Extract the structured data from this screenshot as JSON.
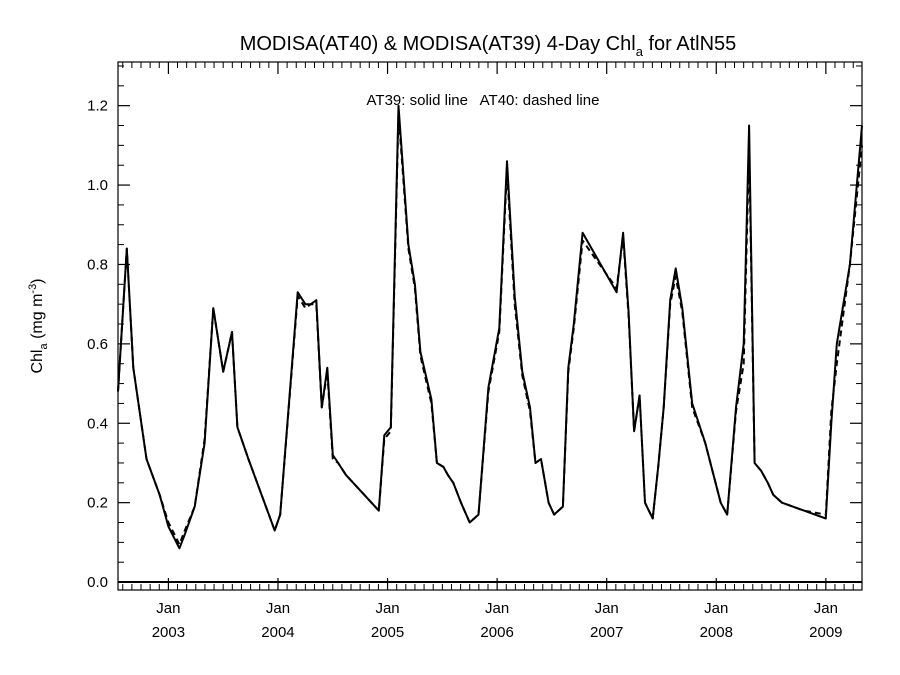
{
  "chart_data": {
    "type": "line",
    "title": {
      "main": "MODISA(AT40) & MODISA(AT39) 4-Day Chl",
      "sub": "a",
      "suffix": " for AtlN55"
    },
    "ylabel": {
      "main": "Chl",
      "sub": "a",
      "units": " (mg m",
      "sup": "-3",
      "close": ")"
    },
    "annotation": "AT39: solid line   AT40: dashed line",
    "ylim": [
      -0.02,
      1.31
    ],
    "yticks": [
      0.0,
      0.2,
      0.4,
      0.6,
      0.8,
      1.0,
      1.2
    ],
    "ytick_labels": [
      "0.0",
      "0.2",
      "0.4",
      "0.6",
      "0.8",
      "1.0",
      "1.2"
    ],
    "xlim": [
      2002.54,
      2009.33
    ],
    "xticks": [
      {
        "x": 2003.0,
        "month": "Jan",
        "year": "2003"
      },
      {
        "x": 2004.0,
        "month": "Jan",
        "year": "2004"
      },
      {
        "x": 2005.0,
        "month": "Jan",
        "year": "2005"
      },
      {
        "x": 2006.0,
        "month": "Jan",
        "year": "2006"
      },
      {
        "x": 2007.0,
        "month": "Jan",
        "year": "2007"
      },
      {
        "x": 2008.0,
        "month": "Jan",
        "year": "2008"
      },
      {
        "x": 2009.0,
        "month": "Jan",
        "year": "2009"
      }
    ],
    "series": [
      {
        "name": "AT39",
        "style": "solid",
        "x": [
          2002.54,
          2002.62,
          2002.68,
          2002.8,
          2002.92,
          2003.0,
          2003.1,
          2003.15,
          2003.24,
          2003.33,
          2003.41,
          2003.5,
          2003.58,
          2003.63,
          2003.73,
          2003.97,
          2004.02,
          2004.18,
          2004.25,
          2004.3,
          2004.35,
          2004.4,
          2004.45,
          2004.5,
          2004.55,
          2004.62,
          2004.92,
          2004.97,
          2005.03,
          2005.1,
          2005.19,
          2005.25,
          2005.3,
          2005.4,
          2005.45,
          2005.51,
          2005.55,
          2005.6,
          2005.67,
          2005.75,
          2005.83,
          2005.92,
          2006.02,
          2006.09,
          2006.16,
          2006.23,
          2006.3,
          2006.35,
          2006.4,
          2006.47,
          2006.52,
          2006.6,
          2006.65,
          2006.7,
          2006.78,
          2007.09,
          2007.15,
          2007.2,
          2007.25,
          2007.3,
          2007.35,
          2007.42,
          2007.47,
          2007.52,
          2007.58,
          2007.63,
          2007.69,
          2007.78,
          2007.9,
          2008.04,
          2008.1,
          2008.18,
          2008.25,
          2008.3,
          2008.35,
          2008.41,
          2008.47,
          2008.52,
          2008.6,
          2008.8,
          2009.0,
          2009.05,
          2009.1,
          2009.22,
          2009.33
        ],
        "y": [
          0.48,
          0.84,
          0.54,
          0.31,
          0.22,
          0.14,
          0.085,
          0.12,
          0.19,
          0.35,
          0.69,
          0.53,
          0.63,
          0.39,
          0.31,
          0.13,
          0.17,
          0.73,
          0.7,
          0.7,
          0.71,
          0.44,
          0.54,
          0.32,
          0.3,
          0.27,
          0.18,
          0.37,
          0.39,
          1.2,
          0.85,
          0.75,
          0.58,
          0.46,
          0.3,
          0.29,
          0.27,
          0.25,
          0.2,
          0.15,
          0.17,
          0.49,
          0.64,
          1.06,
          0.72,
          0.53,
          0.44,
          0.3,
          0.31,
          0.2,
          0.17,
          0.19,
          0.54,
          0.65,
          0.88,
          0.73,
          0.88,
          0.68,
          0.38,
          0.47,
          0.2,
          0.16,
          0.29,
          0.44,
          0.71,
          0.79,
          0.69,
          0.45,
          0.35,
          0.2,
          0.17,
          0.44,
          0.6,
          1.15,
          0.3,
          0.28,
          0.25,
          0.22,
          0.2,
          0.18,
          0.16,
          0.4,
          0.6,
          0.8,
          1.15
        ]
      },
      {
        "name": "AT40",
        "style": "dashed",
        "x": [
          2002.54,
          2002.62,
          2002.68,
          2002.8,
          2002.92,
          2003.0,
          2003.1,
          2003.15,
          2003.24,
          2003.33,
          2003.41,
          2003.5,
          2003.58,
          2003.63,
          2003.73,
          2003.97,
          2004.02,
          2004.18,
          2004.25,
          2004.3,
          2004.35,
          2004.4,
          2004.45,
          2004.5,
          2004.55,
          2004.62,
          2004.92,
          2004.97,
          2005.03,
          2005.1,
          2005.19,
          2005.25,
          2005.3,
          2005.4,
          2005.45,
          2005.51,
          2005.55,
          2005.6,
          2005.67,
          2005.75,
          2005.83,
          2005.92,
          2006.02,
          2006.09,
          2006.16,
          2006.23,
          2006.3,
          2006.35,
          2006.4,
          2006.47,
          2006.52,
          2006.6,
          2006.65,
          2006.7,
          2006.78,
          2007.09,
          2007.15,
          2007.2,
          2007.25,
          2007.3,
          2007.35,
          2007.42,
          2007.47,
          2007.52,
          2007.58,
          2007.63,
          2007.69,
          2007.78,
          2007.9,
          2008.04,
          2008.1,
          2008.18,
          2008.25,
          2008.3,
          2008.35,
          2008.41,
          2008.47,
          2008.52,
          2008.6,
          2008.8,
          2009.0,
          2009.05,
          2009.1,
          2009.22,
          2009.33
        ],
        "y": [
          0.48,
          0.84,
          0.54,
          0.31,
          0.22,
          0.15,
          0.095,
          0.13,
          0.19,
          0.36,
          0.69,
          0.53,
          0.63,
          0.39,
          0.31,
          0.13,
          0.17,
          0.72,
          0.69,
          0.7,
          0.7,
          0.44,
          0.53,
          0.31,
          0.3,
          0.27,
          0.18,
          0.36,
          0.38,
          1.18,
          0.84,
          0.74,
          0.57,
          0.45,
          0.3,
          0.29,
          0.27,
          0.25,
          0.2,
          0.15,
          0.17,
          0.48,
          0.63,
          1.04,
          0.7,
          0.52,
          0.43,
          0.3,
          0.31,
          0.2,
          0.17,
          0.19,
          0.53,
          0.64,
          0.86,
          0.74,
          0.87,
          0.67,
          0.38,
          0.47,
          0.2,
          0.16,
          0.29,
          0.44,
          0.7,
          0.77,
          0.68,
          0.44,
          0.35,
          0.2,
          0.17,
          0.43,
          0.55,
          1.1,
          0.3,
          0.28,
          0.25,
          0.22,
          0.2,
          0.18,
          0.17,
          0.43,
          0.55,
          0.8,
          1.1
        ]
      }
    ],
    "grid": false,
    "legend": "none"
  }
}
